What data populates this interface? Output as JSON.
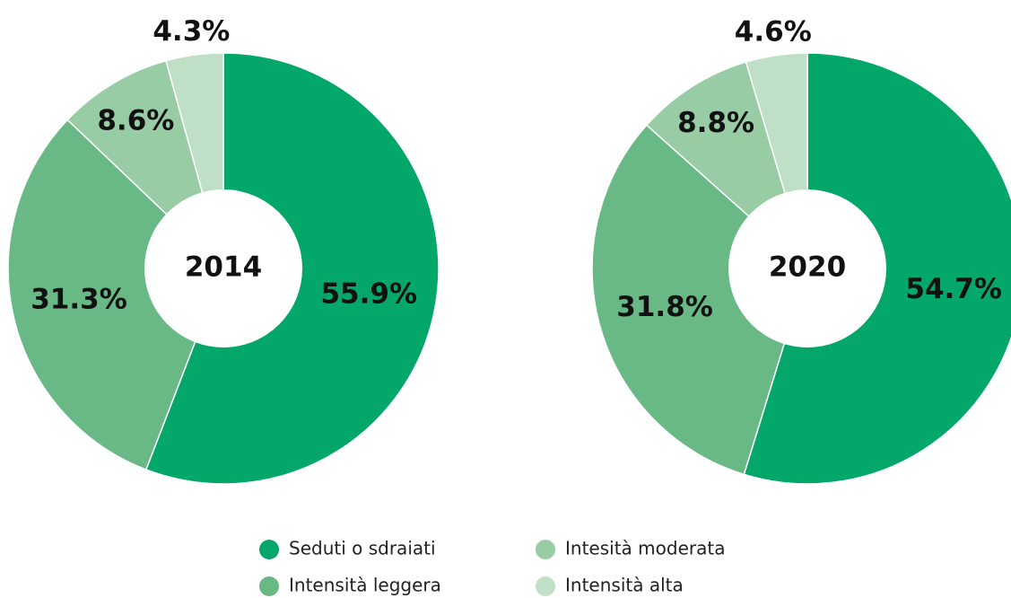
{
  "legend": {
    "categories": [
      "Seduti o sdraiati",
      "Intensità leggera",
      "Intesità moderata",
      "Intensità alta"
    ],
    "colors": [
      "#04a76a",
      "#68b985",
      "#98cca4",
      "#c0dfc7"
    ]
  },
  "chart_data": [
    {
      "type": "donut",
      "title": "2014",
      "values": [
        55.9,
        31.3,
        8.6,
        4.3
      ],
      "value_labels": [
        "55.9%",
        "31.3%",
        "8.6%",
        "4.3%"
      ]
    },
    {
      "type": "donut",
      "title": "2020",
      "values": [
        54.7,
        31.8,
        8.8,
        4.6
      ],
      "value_labels": [
        "54.7%",
        "31.8%",
        "8.8%",
        "4.6%"
      ]
    }
  ]
}
